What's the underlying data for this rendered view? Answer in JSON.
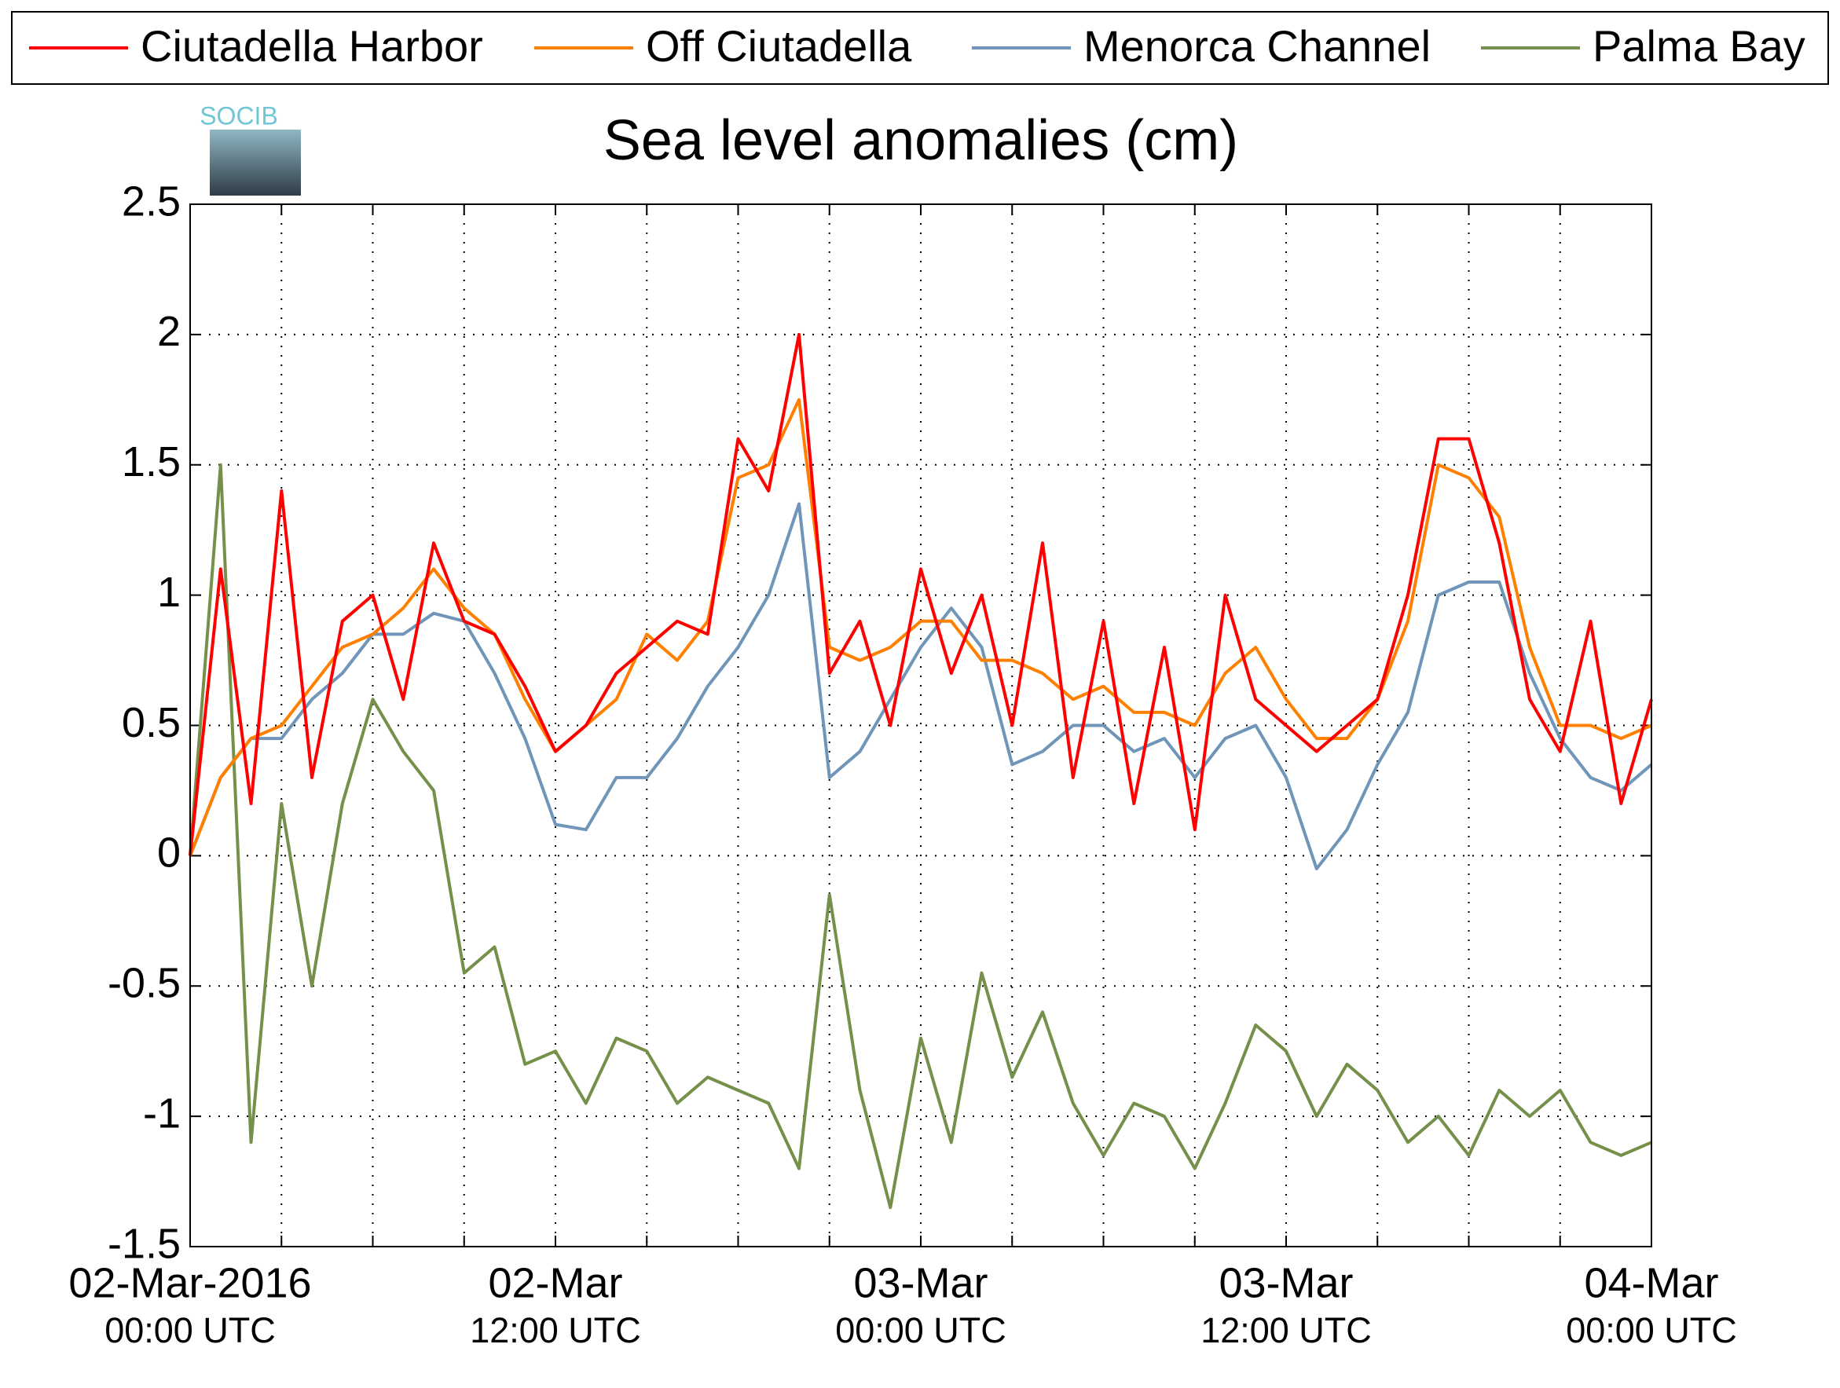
{
  "chart_data": {
    "type": "line",
    "title": "Sea level anomalies (cm)",
    "logo_text": "SOCIB",
    "legend": "top",
    "grid": true,
    "x": [
      "2016-03-02T00:00",
      "2016-03-02T01:00",
      "2016-03-02T02:00",
      "2016-03-02T03:00",
      "2016-03-02T04:00",
      "2016-03-02T05:00",
      "2016-03-02T06:00",
      "2016-03-02T07:00",
      "2016-03-02T08:00",
      "2016-03-02T09:00",
      "2016-03-02T10:00",
      "2016-03-02T11:00",
      "2016-03-02T12:00",
      "2016-03-02T13:00",
      "2016-03-02T14:00",
      "2016-03-02T15:00",
      "2016-03-02T16:00",
      "2016-03-02T17:00",
      "2016-03-02T18:00",
      "2016-03-02T19:00",
      "2016-03-02T20:00",
      "2016-03-02T21:00",
      "2016-03-02T22:00",
      "2016-03-02T23:00",
      "2016-03-03T00:00",
      "2016-03-03T01:00",
      "2016-03-03T02:00",
      "2016-03-03T03:00",
      "2016-03-03T04:00",
      "2016-03-03T05:00",
      "2016-03-03T06:00",
      "2016-03-03T07:00",
      "2016-03-03T08:00",
      "2016-03-03T09:00",
      "2016-03-03T10:00",
      "2016-03-03T11:00",
      "2016-03-03T12:00",
      "2016-03-03T13:00",
      "2016-03-03T14:00",
      "2016-03-03T15:00",
      "2016-03-03T16:00",
      "2016-03-03T17:00",
      "2016-03-03T18:00",
      "2016-03-03T19:00",
      "2016-03-03T20:00",
      "2016-03-03T21:00",
      "2016-03-03T22:00",
      "2016-03-03T23:00",
      "2016-03-04T00:00"
    ],
    "series": [
      {
        "name": "Ciutadella Harbor",
        "color": "#ff0000",
        "values": [
          0,
          1.1,
          0.2,
          1.4,
          0.3,
          0.9,
          1.0,
          0.6,
          1.2,
          0.9,
          0.85,
          0.65,
          0.4,
          0.5,
          0.7,
          0.8,
          0.9,
          0.85,
          1.6,
          1.4,
          2.0,
          0.7,
          0.9,
          0.5,
          1.1,
          0.7,
          1.0,
          0.5,
          1.2,
          0.3,
          0.9,
          0.2,
          0.8,
          0.1,
          1.0,
          0.6,
          0.5,
          0.4,
          0.5,
          0.6,
          1.0,
          1.6,
          1.6,
          1.2,
          0.6,
          0.4,
          0.9,
          0.2,
          0.6
        ]
      },
      {
        "name": "Off Ciutadella",
        "color": "#ff8000",
        "values": [
          0,
          0.3,
          0.45,
          0.5,
          0.65,
          0.8,
          0.85,
          0.95,
          1.1,
          0.95,
          0.85,
          0.6,
          0.4,
          0.5,
          0.6,
          0.85,
          0.75,
          0.9,
          1.45,
          1.5,
          1.75,
          0.8,
          0.75,
          0.8,
          0.9,
          0.9,
          0.75,
          0.75,
          0.7,
          0.6,
          0.65,
          0.55,
          0.55,
          0.5,
          0.7,
          0.8,
          0.6,
          0.45,
          0.45,
          0.6,
          0.9,
          1.5,
          1.45,
          1.3,
          0.8,
          0.5,
          0.5,
          0.45,
          0.5
        ]
      },
      {
        "name": "Menorca Channel",
        "color": "#6f95b8",
        "values": [
          0,
          0.3,
          0.45,
          0.45,
          0.6,
          0.7,
          0.85,
          0.85,
          0.93,
          0.9,
          0.7,
          0.45,
          0.12,
          0.1,
          0.3,
          0.3,
          0.45,
          0.65,
          0.8,
          1.0,
          1.35,
          0.3,
          0.4,
          0.6,
          0.8,
          0.95,
          0.8,
          0.35,
          0.4,
          0.5,
          0.5,
          0.4,
          0.45,
          0.3,
          0.45,
          0.5,
          0.3,
          -0.05,
          0.1,
          0.35,
          0.55,
          1.0,
          1.05,
          1.05,
          0.7,
          0.45,
          0.3,
          0.25,
          0.35
        ]
      },
      {
        "name": "Palma Bay",
        "color": "#74904a",
        "values": [
          0,
          1.5,
          -1.1,
          0.2,
          -0.5,
          0.2,
          0.6,
          0.4,
          0.25,
          -0.45,
          -0.35,
          -0.8,
          -0.75,
          -0.95,
          -0.7,
          -0.75,
          -0.95,
          -0.85,
          -0.9,
          -0.95,
          -1.2,
          -0.15,
          -0.9,
          -1.35,
          -0.7,
          -1.1,
          -0.45,
          -0.85,
          -0.6,
          -0.95,
          -1.15,
          -0.95,
          -1.0,
          -1.2,
          -0.95,
          -0.65,
          -0.75,
          -1.0,
          -0.8,
          -0.9,
          -1.1,
          -1.0,
          -1.15,
          -0.9,
          -1.0,
          -0.9,
          -1.1,
          -1.15,
          -1.1
        ]
      }
    ],
    "xlim": [
      "2016-03-02T00:00",
      "2016-03-04T00:00"
    ],
    "xticks": [
      {
        "value": "2016-03-02T00:00",
        "label": [
          "02-Mar-2016",
          "00:00 UTC"
        ]
      },
      "2016-03-02T03:00",
      "2016-03-02T06:00",
      "2016-03-02T09:00",
      {
        "value": "2016-03-02T12:00",
        "label": [
          "02-Mar",
          "12:00 UTC"
        ]
      },
      "2016-03-02T15:00",
      "2016-03-02T18:00",
      "2016-03-02T21:00",
      {
        "value": "2016-03-03T00:00",
        "label": [
          "03-Mar",
          "00:00 UTC"
        ]
      },
      "2016-03-03T03:00",
      "2016-03-03T06:00",
      "2016-03-03T09:00",
      {
        "value": "2016-03-03T12:00",
        "label": [
          "03-Mar",
          "12:00 UTC"
        ]
      },
      "2016-03-03T15:00",
      "2016-03-03T18:00",
      "2016-03-03T21:00",
      {
        "value": "2016-03-04T00:00",
        "label": [
          "04-Mar",
          "00:00 UTC"
        ]
      }
    ],
    "ylim": [
      -1.5,
      2.5
    ],
    "yticks": [
      -1.5,
      -1,
      -0.5,
      0,
      0.5,
      1,
      1.5,
      2,
      2.5
    ]
  }
}
